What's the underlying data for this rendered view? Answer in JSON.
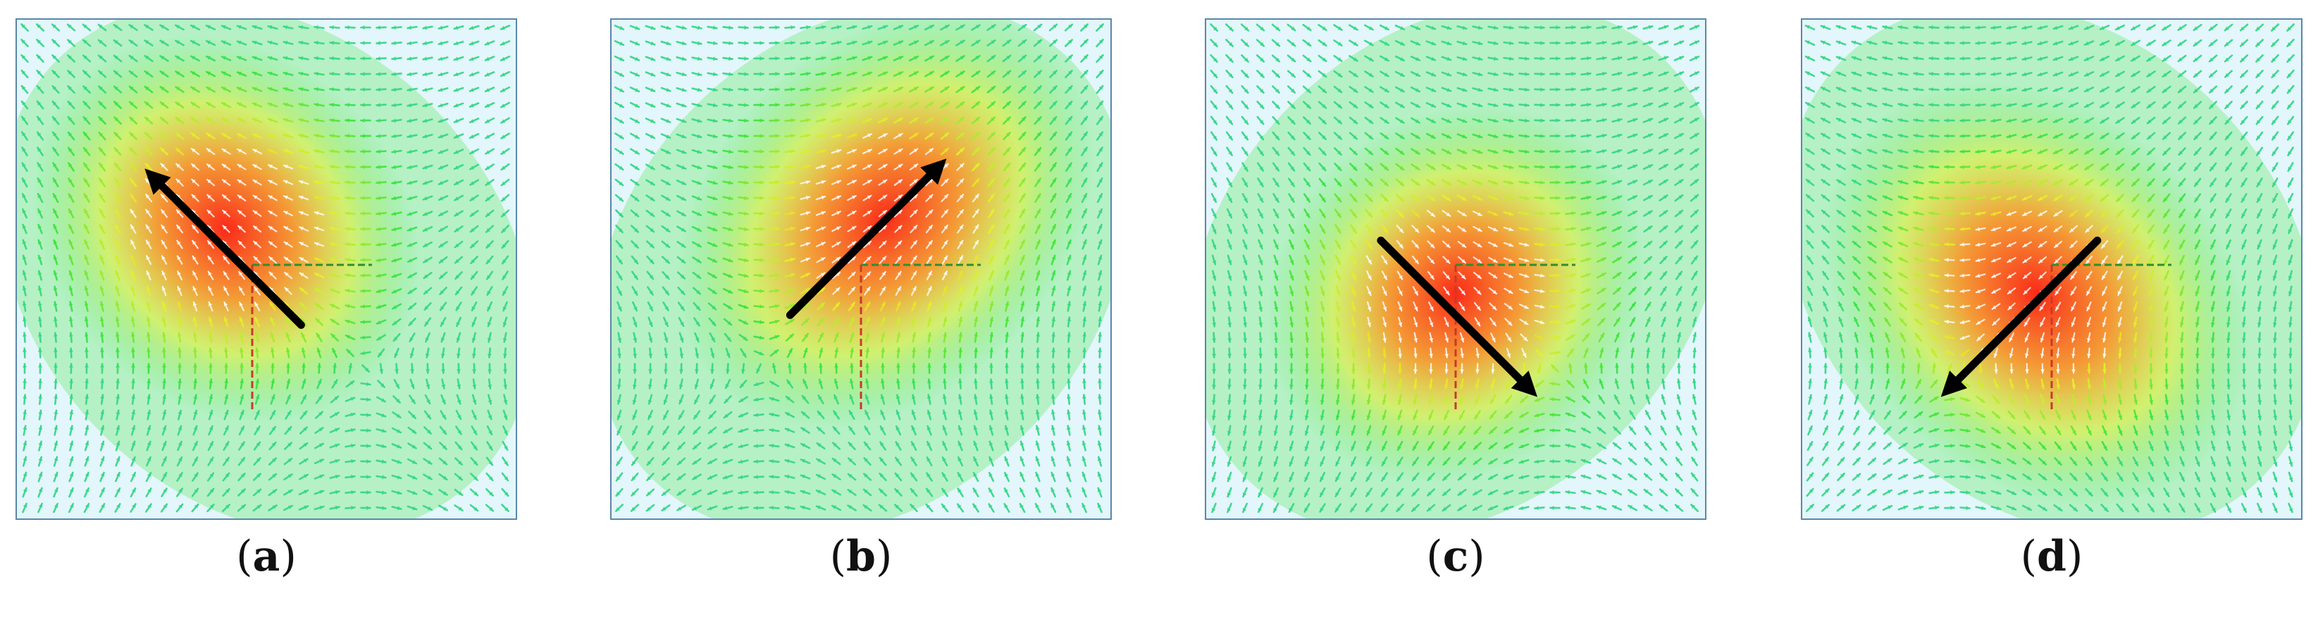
{
  "panels": [
    {
      "id": "a",
      "caption_open": "(",
      "caption_letter": "a",
      "caption_close": ")",
      "arrow_direction": "up-left"
    },
    {
      "id": "b",
      "caption_open": "(",
      "caption_letter": "b",
      "caption_close": ")",
      "arrow_direction": "up-right"
    },
    {
      "id": "c",
      "caption_open": "(",
      "caption_letter": "c",
      "caption_close": ")",
      "arrow_direction": "down-right"
    },
    {
      "id": "d",
      "caption_open": "(",
      "caption_letter": "d",
      "caption_close": ")",
      "arrow_direction": "down-left"
    }
  ],
  "colors": {
    "field_low": "#e3f6fb",
    "field_cyan": "#33c9d6",
    "field_green": "#3ee53a",
    "field_yellow": "#e8ef2a",
    "field_orange": "#ff8a1c",
    "field_red": "#ff1f10",
    "vector_light": "#ffffff",
    "main_arrow": "#000000",
    "axis_green": "#2e8f2e",
    "axis_red": "#c83a2a",
    "border": "#5b86a8"
  }
}
